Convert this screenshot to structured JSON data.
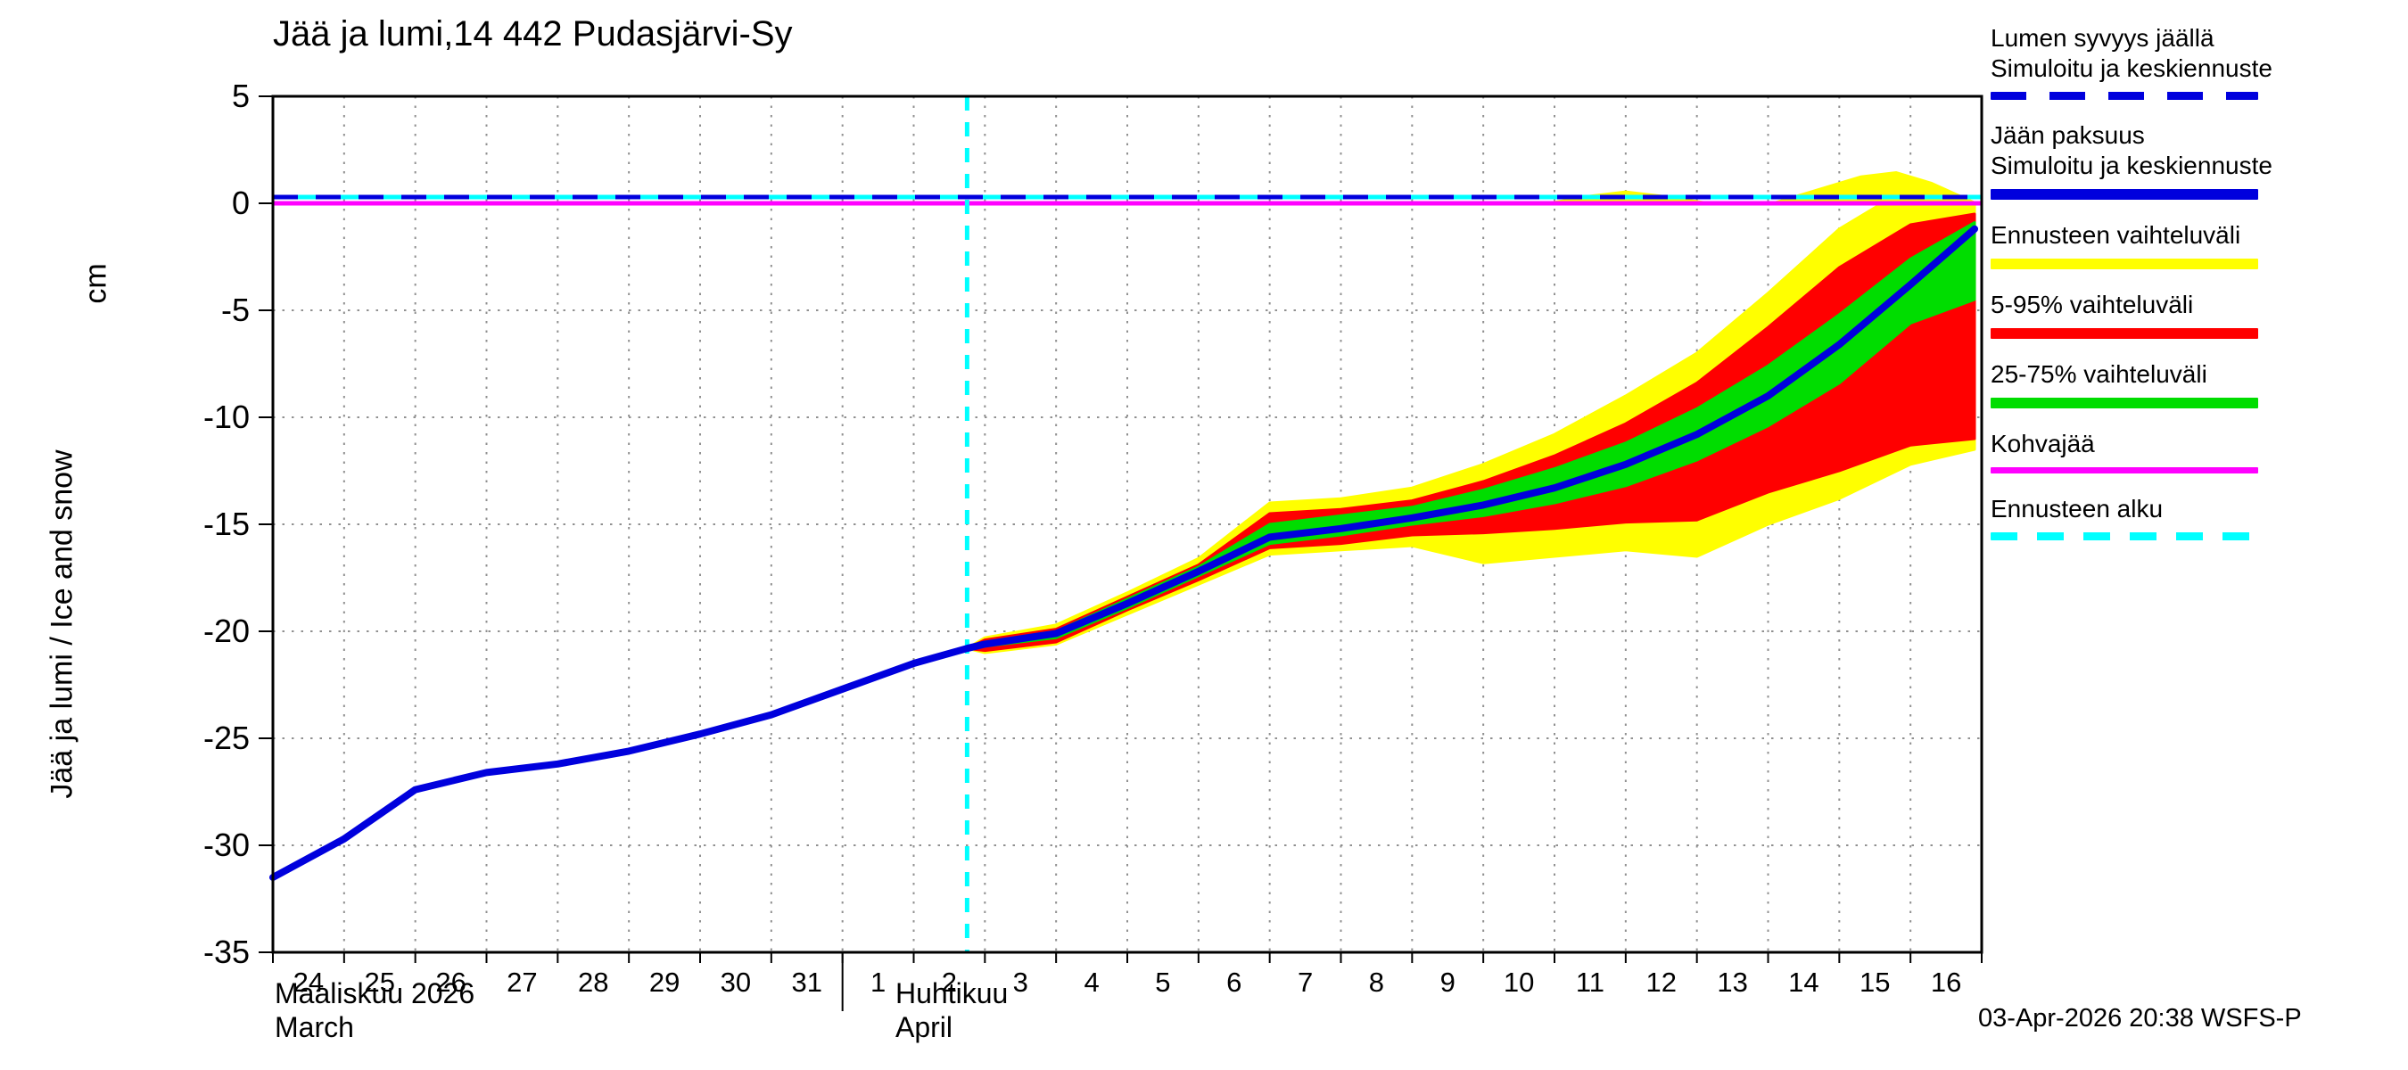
{
  "title": "Jää ja lumi,14 442 Pudasjärvi-Sy",
  "y_axis": {
    "unit_label": "cm",
    "axis_label": "Jää ja lumi / Ice and snow",
    "ticks": [
      5,
      0,
      -5,
      -10,
      -15,
      -20,
      -25,
      -30,
      -35
    ]
  },
  "x_axis": {
    "march_label": "Maaliskuu 2026",
    "march_label_en": "March",
    "april_label": "Huhtikuu",
    "april_label_en": "April",
    "march_days": [
      24,
      25,
      26,
      27,
      28,
      29,
      30,
      31
    ],
    "april_days": [
      1,
      2,
      3,
      4,
      5,
      6,
      7,
      8,
      9,
      10,
      11,
      12,
      13,
      14,
      15,
      16
    ]
  },
  "footer": {
    "timestamp": "03-Apr-2026 20:38 WSFS-P"
  },
  "colors": {
    "blue": "#0000dd",
    "yellow": "#ffff00",
    "red": "#ff0000",
    "green": "#00dd00",
    "magenta": "#ff00ff",
    "cyan": "#00ffff",
    "grid": "#909090"
  },
  "legend": {
    "items": [
      {
        "line1": "Lumen syvyys jäällä",
        "line2": "Simuloitu ja keskiennuste",
        "color": "#0000dd",
        "dash": [
          40,
          26
        ],
        "thickness": 9
      },
      {
        "line1": "Jään paksuus",
        "line2": "Simuloitu ja keskiennuste",
        "color": "#0000dd",
        "thickness": 12
      },
      {
        "line1": "Ennusteen vaihteluväli",
        "color": "#ffff00",
        "thickness": 12
      },
      {
        "line1": "5-95% vaihteluväli",
        "color": "#ff0000",
        "thickness": 12
      },
      {
        "line1": "25-75% vaihteluväli",
        "color": "#00dd00",
        "thickness": 12
      },
      {
        "line1": "Kohvajää",
        "color": "#ff00ff",
        "thickness": 7
      },
      {
        "line1": "Ennusteen alku",
        "color": "#00ffff",
        "dash": [
          30,
          22
        ],
        "thickness": 9
      }
    ]
  },
  "chart_data": {
    "type": "line",
    "title": "Jää ja lumi,14 442 Pudasjärvi-Sy",
    "ylabel": "Jää ja lumi / Ice and snow (cm)",
    "ylim": [
      -35,
      5
    ],
    "x_unit": "days since 2026-03-24",
    "x_range": [
      0,
      24
    ],
    "forecast_start_day": 9.75,
    "grid": true,
    "zero_lines": {
      "kohvajaa_value": 0,
      "kohvajaa_color": "#ff00ff",
      "snow_depth_value": 0,
      "snow_line_color": "#0000dd",
      "forecast_underlay_color": "#00ffff"
    },
    "series": [
      {
        "key": "ice-thickness",
        "name": "Jään paksuus — Simuloitu ja keskiennuste",
        "color": "#0000dd",
        "x": [
          0,
          1,
          2,
          3,
          4,
          5,
          6,
          7,
          8,
          9,
          9.75,
          10,
          11,
          12,
          13,
          14,
          15,
          16,
          17,
          18,
          19,
          20,
          21,
          22,
          23,
          23.9
        ],
        "values": [
          -31.5,
          -29.7,
          -27.4,
          -26.6,
          -26.2,
          -25.6,
          -24.8,
          -23.9,
          -22.7,
          -21.5,
          -20.8,
          -20.6,
          -20.1,
          -18.7,
          -17.2,
          -15.6,
          -15.2,
          -14.7,
          -14.1,
          -13.3,
          -12.2,
          -10.8,
          -9.0,
          -6.6,
          -3.8,
          -1.2
        ]
      }
    ],
    "bands": [
      {
        "key": "forecast-range",
        "name": "Ennusteen vaihteluväli",
        "color": "#ffff00",
        "x": [
          9.75,
          10,
          11,
          12,
          13,
          14,
          15,
          16,
          17,
          18,
          19,
          20,
          21,
          22,
          23,
          23.9
        ],
        "lower": [
          -20.8,
          -21.0,
          -20.6,
          -19.2,
          -17.8,
          -16.4,
          -16.2,
          -16.0,
          -16.8,
          -16.5,
          -16.2,
          -16.5,
          -15.0,
          -13.8,
          -12.2,
          -11.5
        ],
        "upper": [
          -20.8,
          -20.3,
          -19.7,
          -18.2,
          -16.6,
          -14.0,
          -13.8,
          -13.3,
          -12.2,
          -10.8,
          -9.0,
          -7.0,
          -4.2,
          -1.2,
          0.8,
          0.0
        ]
      },
      {
        "key": "range-5-95",
        "name": "5-95% vaihteluväli",
        "color": "#ff0000",
        "x": [
          9.75,
          10,
          11,
          12,
          13,
          14,
          15,
          16,
          17,
          18,
          19,
          20,
          21,
          22,
          23,
          23.9
        ],
        "lower": [
          -20.8,
          -20.9,
          -20.5,
          -19.0,
          -17.6,
          -16.1,
          -15.9,
          -15.5,
          -15.4,
          -15.2,
          -14.9,
          -14.8,
          -13.5,
          -12.5,
          -11.3,
          -11.0
        ],
        "upper": [
          -20.8,
          -20.4,
          -19.9,
          -18.4,
          -16.9,
          -14.5,
          -14.3,
          -13.9,
          -13.0,
          -11.8,
          -10.3,
          -8.4,
          -5.8,
          -3.0,
          -1.0,
          -0.5
        ]
      },
      {
        "key": "range-25-75",
        "name": "25-75% vaihteluväli",
        "color": "#00dd00",
        "x": [
          9.75,
          10,
          11,
          12,
          13,
          14,
          15,
          16,
          17,
          18,
          19,
          20,
          21,
          22,
          23,
          23.9
        ],
        "lower": [
          -20.8,
          -20.7,
          -20.3,
          -18.9,
          -17.4,
          -15.9,
          -15.5,
          -15.0,
          -14.6,
          -14.0,
          -13.2,
          -12.0,
          -10.4,
          -8.4,
          -5.6,
          -4.5
        ],
        "upper": [
          -20.8,
          -20.5,
          -20.0,
          -18.5,
          -17.0,
          -15.0,
          -14.6,
          -14.2,
          -13.4,
          -12.4,
          -11.2,
          -9.6,
          -7.6,
          -5.2,
          -2.6,
          -0.9
        ]
      }
    ],
    "snow_forecast_band": {
      "key": "snow-depth-forecast-range",
      "color": "#ffff00",
      "baseline": 0,
      "x": [
        17.8,
        18.5,
        19,
        19.5,
        20.3,
        21,
        21.6,
        22.3,
        22.8,
        23.3,
        23.9
      ],
      "upper": [
        0,
        0.4,
        0.6,
        0.4,
        0,
        0,
        0.6,
        1.3,
        1.5,
        1.0,
        0.1
      ]
    }
  }
}
